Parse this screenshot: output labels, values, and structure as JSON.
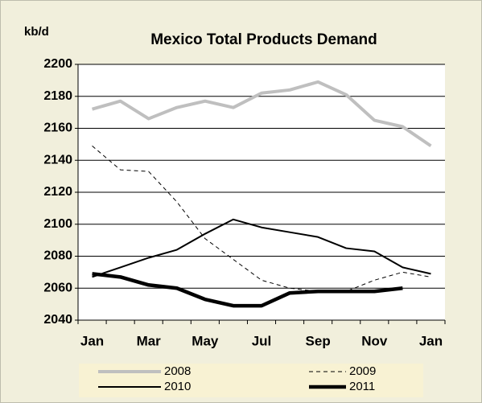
{
  "chart_data": {
    "type": "line",
    "title": "Mexico Total Products Demand",
    "y_label": "kb/d",
    "categories": [
      "Jan",
      null,
      "Mar",
      null,
      "May",
      null,
      "Jul",
      null,
      "Sep",
      null,
      "Nov",
      null,
      "Jan"
    ],
    "series": [
      {
        "name": "2008",
        "color": "#bfbfbf",
        "values": [
          2172,
          2177,
          2166,
          2173,
          2177,
          2173,
          2182,
          2184,
          2189,
          2181,
          2165,
          2161,
          2149
        ]
      },
      {
        "name": "2009",
        "color": "#000000",
        "dashed": true,
        "values": [
          2149,
          2134,
          2133,
          2114,
          2091,
          2078,
          2065,
          2060,
          2058,
          2058,
          2065,
          2070,
          2067
        ]
      },
      {
        "name": "2010",
        "color": "#000000",
        "values": [
          2067,
          2073,
          2079,
          2084,
          2094,
          2103,
          2098,
          2095,
          2092,
          2085,
          2083,
          2073,
          2069
        ]
      },
      {
        "name": "2011",
        "color": "#000000",
        "values": [
          2069,
          2067,
          2062,
          2060,
          2053,
          2049,
          2049,
          2057,
          2058,
          2058,
          2058,
          2060,
          null
        ]
      }
    ],
    "ylim": [
      2040,
      2200
    ],
    "yticks": [
      2040,
      2060,
      2080,
      2100,
      2120,
      2140,
      2160,
      2180,
      2200
    ],
    "grid": true,
    "legend": "bottom"
  }
}
